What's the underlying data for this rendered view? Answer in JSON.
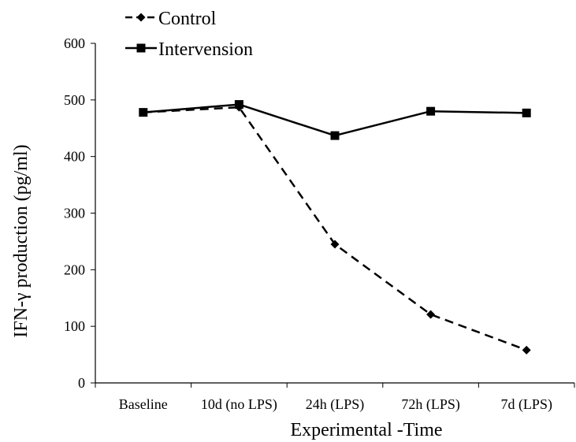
{
  "chart_data": {
    "type": "line",
    "categories": [
      "Baseline",
      "10d (no LPS)",
      "24h (LPS)",
      "72h (LPS)",
      "7d (LPS)"
    ],
    "series": [
      {
        "name": "Control",
        "values": [
          478,
          487,
          245,
          121,
          58
        ],
        "color": "#000000",
        "line_style": "dashed",
        "marker": "diamond"
      },
      {
        "name": "Intervension",
        "values": [
          478,
          492,
          437,
          480,
          477
        ],
        "color": "#000000",
        "line_style": "solid",
        "marker": "square"
      }
    ],
    "xlabel": "Experimental -Time",
    "ylabel": "IFN-γ production (pg/ml)",
    "ylim": [
      0,
      600
    ],
    "yticks": [
      0,
      100,
      200,
      300,
      400,
      500,
      600
    ],
    "grid": false,
    "legend_position": "top-left"
  }
}
